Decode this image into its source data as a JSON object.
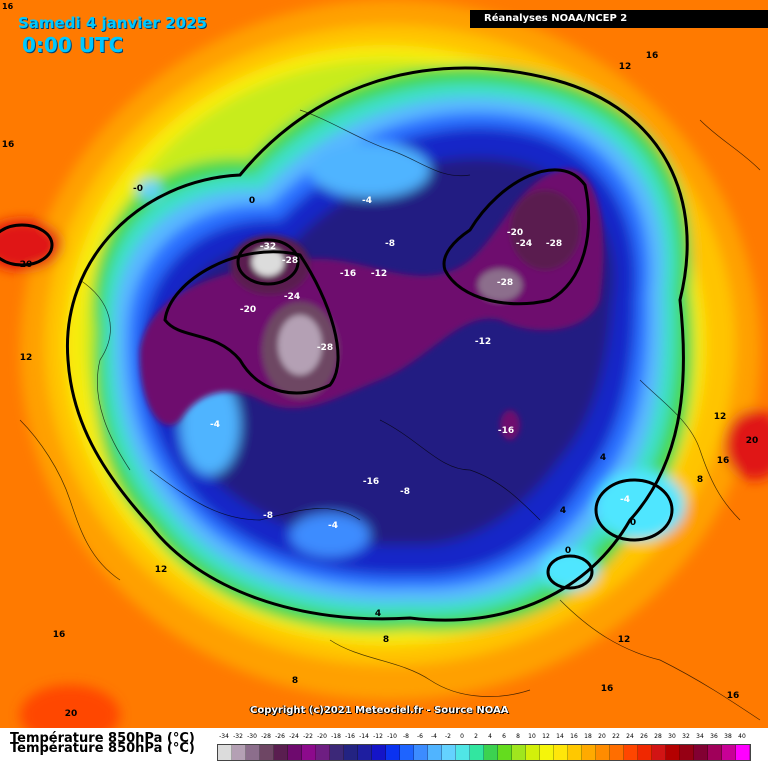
{
  "header": {
    "date": "Samedi 4 janvier 2025",
    "time": "0:00 UTC",
    "source": "Réanalyses NOAA/NCEP 2",
    "corner_value": "16"
  },
  "map": {
    "contour_labels": [
      {
        "text": "16"
      },
      {
        "text": "12"
      },
      {
        "text": "16"
      },
      {
        "text": "20"
      },
      {
        "text": "-0"
      },
      {
        "text": "0"
      },
      {
        "text": "-4"
      },
      {
        "text": "-8"
      },
      {
        "text": "-32"
      },
      {
        "text": "-28"
      },
      {
        "text": "-16"
      },
      {
        "text": "-12"
      },
      {
        "text": "-20"
      },
      {
        "text": "-24"
      },
      {
        "text": "-28"
      },
      {
        "text": "-28"
      },
      {
        "text": "-24"
      },
      {
        "text": "-20"
      },
      {
        "text": "-28"
      },
      {
        "text": "-12"
      },
      {
        "text": "12"
      },
      {
        "text": "-4"
      },
      {
        "text": "-16"
      },
      {
        "text": "-16"
      },
      {
        "text": "-8"
      },
      {
        "text": "-8"
      },
      {
        "text": "-4"
      },
      {
        "text": "4"
      },
      {
        "text": "-4"
      },
      {
        "text": "0"
      },
      {
        "text": "4"
      },
      {
        "text": "0"
      },
      {
        "text": "8"
      },
      {
        "text": "12"
      },
      {
        "text": "16"
      },
      {
        "text": "20"
      },
      {
        "text": "12"
      },
      {
        "text": "16"
      },
      {
        "text": "4"
      },
      {
        "text": "8"
      },
      {
        "text": "12"
      },
      {
        "text": "16"
      },
      {
        "text": "8"
      },
      {
        "text": "16"
      },
      {
        "text": "20"
      },
      {
        "text": "16"
      }
    ],
    "copyright": "Copyright (c)2021 Meteociel.fr - Source NOAA"
  },
  "legend": {
    "title": "Température 850hPa (°C)",
    "ticks": [
      "-34",
      "-32",
      "-30",
      "-28",
      "-26",
      "-24",
      "-22",
      "-20",
      "-18",
      "-16",
      "-14",
      "-12",
      "-10",
      "-8",
      "-6",
      "-4",
      "-2",
      "0",
      "2",
      "4",
      "6",
      "8",
      "10",
      "12",
      "14",
      "16",
      "18",
      "20",
      "22",
      "24",
      "26",
      "28",
      "30",
      "32",
      "34",
      "36",
      "38",
      "40"
    ],
    "colors": [
      "#dcdcdc",
      "#b4a0b4",
      "#8c6e8c",
      "#6e4664",
      "#5a1e50",
      "#6e0a6e",
      "#8c0a8c",
      "#6e1e82",
      "#3c2878",
      "#232382",
      "#1e1ea0",
      "#1414c8",
      "#0a32f0",
      "#1e64ff",
      "#3c8cff",
      "#50b4ff",
      "#64d2ff",
      "#50e6e6",
      "#32e6a0",
      "#3cd250",
      "#64dc1e",
      "#a0e61e",
      "#d2f00a",
      "#f5f50a",
      "#ffe60a",
      "#ffc800",
      "#ffaa00",
      "#ff8c00",
      "#ff6e00",
      "#ff4600",
      "#f02800",
      "#d21414",
      "#b40000",
      "#960014",
      "#820032",
      "#a0005a",
      "#c80096",
      "#ff00ff"
    ]
  }
}
